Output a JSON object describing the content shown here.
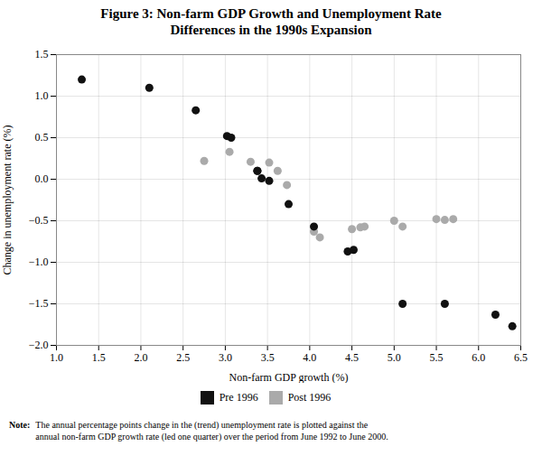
{
  "chart_data": {
    "type": "scatter",
    "title": "Figure 3: Non-farm GDP Growth and Unemployment Rate\nDifferences in the 1990s Expansion",
    "xlabel": "Non-farm GDP growth (%)",
    "ylabel": "Change in unemployment rate (%)",
    "xlim": [
      1.0,
      6.5
    ],
    "ylim": [
      -2.0,
      1.5
    ],
    "xticks": [
      {
        "value": 1.0,
        "label": "1.0"
      },
      {
        "value": 1.5,
        "label": "1.5"
      },
      {
        "value": 2.0,
        "label": "2.0"
      },
      {
        "value": 2.5,
        "label": "2.5"
      },
      {
        "value": 3.0,
        "label": "3.0"
      },
      {
        "value": 3.5,
        "label": "3.5"
      },
      {
        "value": 4.0,
        "label": "4.0"
      },
      {
        "value": 4.5,
        "label": "4.5"
      },
      {
        "value": 5.0,
        "label": "5.0"
      },
      {
        "value": 5.5,
        "label": "5.5"
      },
      {
        "value": 6.0,
        "label": "6.0"
      },
      {
        "value": 6.5,
        "label": "6.5"
      }
    ],
    "yticks": [
      {
        "value": -2.0,
        "label": "−2.0"
      },
      {
        "value": -1.5,
        "label": "−1.5"
      },
      {
        "value": -1.0,
        "label": "−1.0"
      },
      {
        "value": -0.5,
        "label": "−0.5"
      },
      {
        "value": 0.0,
        "label": "0.0"
      },
      {
        "value": 0.5,
        "label": "0.5"
      },
      {
        "value": 1.0,
        "label": "1.0"
      },
      {
        "value": 1.5,
        "label": "1.5"
      }
    ],
    "grid": true,
    "legend": "bottom",
    "series": [
      {
        "name": "Pre 1996",
        "color": "#111111",
        "x": [
          1.3,
          2.1,
          2.65,
          3.02,
          3.07,
          3.38,
          3.43,
          3.52,
          3.38,
          3.75,
          4.05,
          4.45,
          4.52,
          5.1,
          5.6,
          6.2,
          6.4
        ],
        "values": [
          1.2,
          1.1,
          0.83,
          0.52,
          0.5,
          0.1,
          0.01,
          -0.02,
          0.1,
          -0.3,
          -0.57,
          -0.87,
          -0.85,
          -1.5,
          -1.5,
          -1.63,
          -1.77
        ]
      },
      {
        "name": "Post 1996",
        "color": "#aaaaaa",
        "x": [
          2.75,
          3.05,
          3.3,
          3.52,
          3.62,
          3.73,
          4.05,
          4.12,
          4.5,
          4.6,
          4.65,
          5.0,
          5.1,
          5.5,
          5.6,
          5.7
        ],
        "values": [
          0.22,
          0.33,
          0.21,
          0.2,
          0.1,
          -0.07,
          -0.63,
          -0.7,
          -0.6,
          -0.58,
          -0.57,
          -0.5,
          -0.57,
          -0.48,
          -0.49,
          -0.48
        ]
      }
    ],
    "annotations": [
      "Note:",
      "The annual percentage points change in the (trend) unemployment rate is plotted against the\nannual non-farm GDP growth rate (led one quarter) over the period from June 1992 to June 2000."
    ]
  }
}
